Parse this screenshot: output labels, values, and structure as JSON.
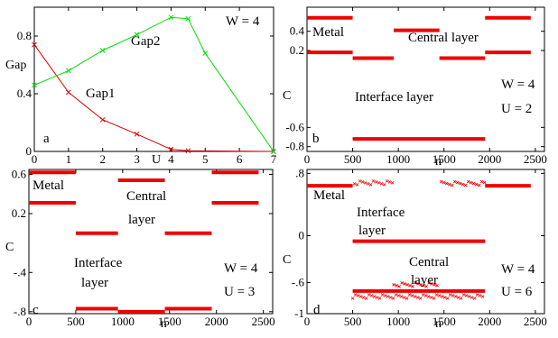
{
  "chart_data": [
    {
      "panel": "a",
      "type": "line",
      "ylabel": "Gap",
      "xlabel": "U",
      "xlim": [
        0,
        7
      ],
      "ylim": [
        0,
        1.0
      ],
      "x_ticks": [
        "0",
        "1",
        "2",
        "3",
        "4",
        "5",
        "6",
        "7"
      ],
      "y_ticks": [
        "0",
        "0.4",
        "0.8"
      ],
      "y_tick_values": [
        0,
        0.4,
        0.8
      ],
      "text": [
        "W = 4",
        "Gap2",
        "Gap1",
        "a"
      ],
      "series": [
        {
          "name": "Gap1",
          "color": "#e00000",
          "x": [
            0,
            1,
            2,
            3,
            4,
            4.5,
            7
          ],
          "y": [
            0.74,
            0.41,
            0.22,
            0.12,
            0.015,
            0.005,
            0.0
          ]
        },
        {
          "name": "Gap2",
          "color": "#00dd00",
          "x": [
            0,
            1,
            2,
            3,
            4,
            4.5,
            5,
            7
          ],
          "y": [
            0.46,
            0.56,
            0.7,
            0.81,
            0.93,
            0.92,
            0.68,
            0.0
          ]
        }
      ]
    },
    {
      "panel": "b",
      "type": "scatter",
      "ylabel": "C",
      "xlabel": "n",
      "xlim": [
        0,
        2600
      ],
      "ylim": [
        -0.85,
        0.65
      ],
      "x_ticks": [
        "0",
        "500",
        "1000",
        "1500",
        "2000",
        "2500"
      ],
      "y_ticks": [
        "0.4",
        "0.2",
        "-0.6",
        "-0.8"
      ],
      "y_tick_values": [
        0.4,
        0.2,
        -0.6,
        -0.8
      ],
      "text": [
        "Metal",
        "Central layer",
        "Interface layer",
        "W = 4",
        "U = 2",
        "b"
      ],
      "segments": [
        {
          "x": [
            0,
            500
          ],
          "y": 0.54
        },
        {
          "x": [
            0,
            500
          ],
          "y": 0.18
        },
        {
          "x": [
            500,
            950
          ],
          "y": 0.12
        },
        {
          "x": [
            950,
            1450
          ],
          "y": 0.41
        },
        {
          "x": [
            1450,
            1950
          ],
          "y": 0.12
        },
        {
          "x": [
            1950,
            2450
          ],
          "y": 0.54
        },
        {
          "x": [
            1950,
            2450
          ],
          "y": 0.18
        },
        {
          "x": [
            500,
            1950
          ],
          "y": -0.72
        }
      ]
    },
    {
      "panel": "c",
      "type": "scatter",
      "ylabel": "C",
      "xlabel": "n",
      "xlim": [
        0,
        2600
      ],
      "ylim": [
        -0.82,
        0.65
      ],
      "x_ticks": [
        "0",
        "500",
        "1000",
        "1500",
        "2000",
        "2500"
      ],
      "y_ticks": [
        "0.6",
        "0.2",
        "-.4",
        "-.8"
      ],
      "y_tick_values": [
        0.6,
        0.2,
        -0.4,
        -0.8
      ],
      "text": [
        "Metal",
        "Central",
        "layer",
        "Interface",
        "layer",
        "W = 4",
        "U = 3",
        "c"
      ],
      "segments": [
        {
          "x": [
            0,
            500
          ],
          "y": 0.62
        },
        {
          "x": [
            0,
            500
          ],
          "y": 0.31
        },
        {
          "x": [
            500,
            950
          ],
          "y": 0.0
        },
        {
          "x": [
            950,
            1450
          ],
          "y": 0.54
        },
        {
          "x": [
            1450,
            1950
          ],
          "y": 0.0
        },
        {
          "x": [
            1950,
            2450
          ],
          "y": 0.62
        },
        {
          "x": [
            1950,
            2450
          ],
          "y": 0.31
        },
        {
          "x": [
            500,
            950
          ],
          "y": -0.77
        },
        {
          "x": [
            950,
            1450
          ],
          "y": -0.8
        },
        {
          "x": [
            1450,
            1950
          ],
          "y": -0.77
        }
      ]
    },
    {
      "panel": "d",
      "type": "scatter",
      "ylabel": "C",
      "xlabel": "n",
      "xlim": [
        0,
        2600
      ],
      "ylim": [
        -1.0,
        0.85
      ],
      "x_ticks": [
        "0",
        "500",
        "1000",
        "1500",
        "2000",
        "2500"
      ],
      "y_ticks": [
        ".8",
        "0",
        "-.6",
        "-1"
      ],
      "y_tick_values": [
        0.8,
        0.0,
        -0.6,
        -1.0
      ],
      "text": [
        "Metal",
        "Interface",
        "layer",
        "Central",
        "layer",
        "W = 4",
        "U = 6",
        "d"
      ],
      "segments": [
        {
          "x": [
            0,
            500
          ],
          "y": 0.64
        },
        {
          "x": [
            1950,
            2450
          ],
          "y": 0.64
        },
        {
          "x": [
            500,
            1950
          ],
          "y": -0.07
        },
        {
          "x": [
            500,
            1950
          ],
          "y": -0.71
        }
      ],
      "sparse_points": [
        {
          "x": [
            520,
            950
          ],
          "y": 0.68
        },
        {
          "x": [
            1470,
            1950
          ],
          "y": 0.68
        },
        {
          "x": [
            950,
            1450
          ],
          "y": -0.62
        },
        {
          "x": [
            500,
            1950
          ],
          "y": -0.78
        }
      ]
    }
  ]
}
